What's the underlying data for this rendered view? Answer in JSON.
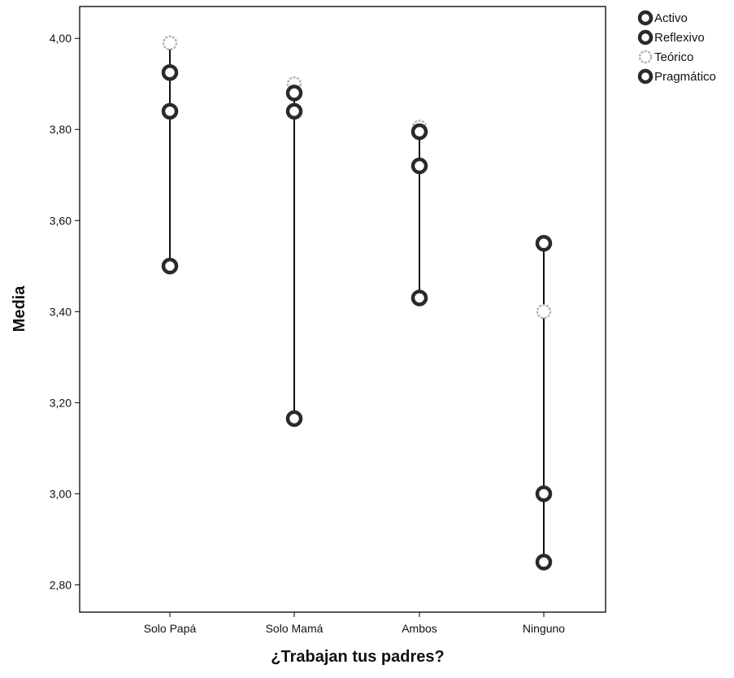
{
  "chart_data": {
    "type": "scatter",
    "subtype": "high-low dot plot",
    "xlabel": "¿Trabajan tus padres?",
    "ylabel": "Media",
    "categories": [
      "Solo Papá",
      "Solo Mamá",
      "Ambos",
      "Ninguno"
    ],
    "ylim": [
      2.74,
      4.07
    ],
    "yticks": [
      2.8,
      3.0,
      3.2,
      3.4,
      3.6,
      3.8,
      4.0
    ],
    "ytick_labels": [
      "2,80",
      "3,00",
      "3,20",
      "3,40",
      "3,60",
      "3,80",
      "4,00"
    ],
    "grid": false,
    "legend_position": "top-right, outside plot",
    "series": [
      {
        "name": "Activo",
        "color": "#2a2a2a",
        "values": [
          3.5,
          3.165,
          3.43,
          3.55
        ]
      },
      {
        "name": "Reflexivo",
        "color": "#2a2a2a",
        "values": [
          3.84,
          3.84,
          3.72,
          3.0
        ]
      },
      {
        "name": "Teórico",
        "color": "#b5b5b5",
        "values": [
          3.99,
          3.9,
          3.805,
          3.4
        ]
      },
      {
        "name": "Pragmático",
        "color": "#2a2a2a",
        "values": [
          3.925,
          3.88,
          3.795,
          2.85
        ]
      }
    ]
  }
}
